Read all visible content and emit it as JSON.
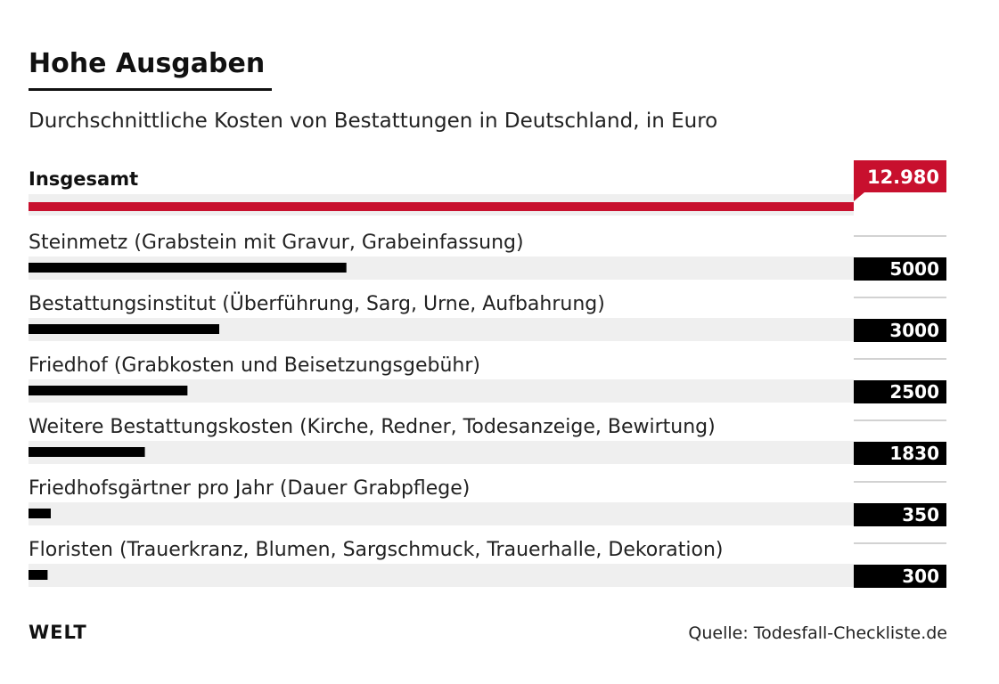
{
  "header": {
    "title": "Hohe Ausgaben",
    "subtitle": "Durchschnittliche Kosten von Bestattungen in Deutschland, in Euro"
  },
  "footer": {
    "logo": "WELT",
    "source": "Quelle: Todesfall-Checkliste.de"
  },
  "colors": {
    "total": "#c8102e",
    "bar": "#000000",
    "track": "#efefef",
    "label_box": "#000000",
    "label_text": "#ffffff"
  },
  "chart_data": {
    "type": "bar",
    "orientation": "horizontal",
    "unit": "Euro",
    "xlim": [
      0,
      12980
    ],
    "grid": false,
    "total": {
      "label": "Insgesamt",
      "value": 12980,
      "value_label": "12.980"
    },
    "categories": [
      "Steinmetz (Grabstein mit Gravur, Grabeinfassung)",
      "Bestattungsinstitut (Überführung, Sarg, Urne, Aufbahrung)",
      "Friedhof (Grabkosten und Beisetzungsgebühr)",
      "Weitere Bestattungskosten (Kirche, Redner, Todesanzeige, Bewirtung)",
      "Friedhofsgärtner pro Jahr (Dauer Grabpflege)",
      "Floristen (Trauerkranz, Blumen, Sargschmuck, Trauerhalle, Dekoration)"
    ],
    "values": [
      5000,
      3000,
      2500,
      1830,
      350,
      300
    ],
    "value_labels": [
      "5000",
      "3000",
      "2500",
      "1830",
      "350",
      "300"
    ]
  }
}
